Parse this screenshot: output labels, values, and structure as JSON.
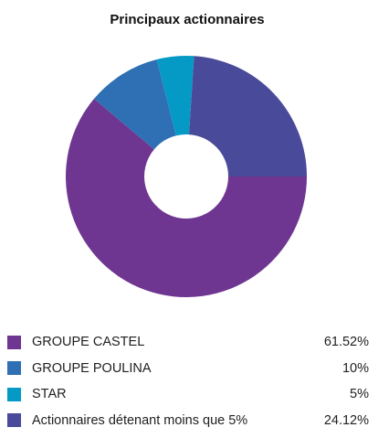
{
  "chart_data": {
    "type": "pie",
    "variant": "donut",
    "title": "Principaux actionnaires",
    "categories": [
      "GROUPE CASTEL",
      "GROUPE POULINA",
      "STAR",
      "Actionnaires détenant moins que 5%"
    ],
    "values": [
      61.52,
      10,
      5,
      24.12
    ],
    "value_labels": [
      "61.52%",
      "10%",
      "5%",
      "24.12%"
    ],
    "colors": [
      "#6e3591",
      "#2e70b3",
      "#0599c6",
      "#4a4a9a"
    ],
    "legend_position": "bottom"
  }
}
